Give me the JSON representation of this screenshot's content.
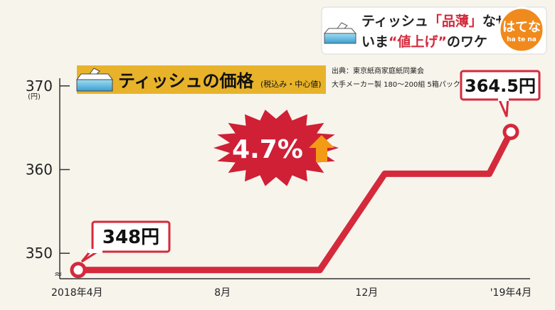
{
  "badge": {
    "line1_a": "ティッシュ",
    "line1_q": "「品薄」",
    "line1_b": "なぜ？",
    "line2_a": "いま",
    "line2_q": "“値上げ”",
    "line2_b": "のワケ",
    "logo": "はてな",
    "logo_sub": "ha te na"
  },
  "title": {
    "main": "ティッシュの価格",
    "sub": "(税込み・中心値)",
    "source": "出典：東京紙商家庭紙同業会",
    "note": "大手メーカー製 180〜200組 5箱パック"
  },
  "callouts": {
    "start": "348円",
    "end": "364.5円",
    "change": "4.7%"
  },
  "colors": {
    "line": "#d42a3c",
    "burst": "#cf2036",
    "arrow": "#f39a16",
    "title_bg": "#e8b32a"
  },
  "chart_data": {
    "type": "line",
    "title": "ティッシュの価格",
    "ylabel": "(円)",
    "ylim": [
      348,
      370
    ],
    "yticks": [
      {
        "label": "370",
        "value": 370
      },
      {
        "label": "360",
        "value": 360
      },
      {
        "label": "350",
        "value": 350
      }
    ],
    "xticks": [
      {
        "label": "2018年4月",
        "value": 0
      },
      {
        "label": "8月",
        "value": 4
      },
      {
        "label": "12月",
        "value": 8
      },
      {
        "label": "'19年4月",
        "value": 12
      }
    ],
    "series": [
      {
        "points": [
          {
            "x": 0,
            "y": 348
          },
          {
            "x": 6.7,
            "y": 348
          },
          {
            "x": 8.5,
            "y": 359.5
          },
          {
            "x": 11.4,
            "y": 359.5
          },
          {
            "x": 12,
            "y": 364.5
          }
        ]
      }
    ]
  }
}
